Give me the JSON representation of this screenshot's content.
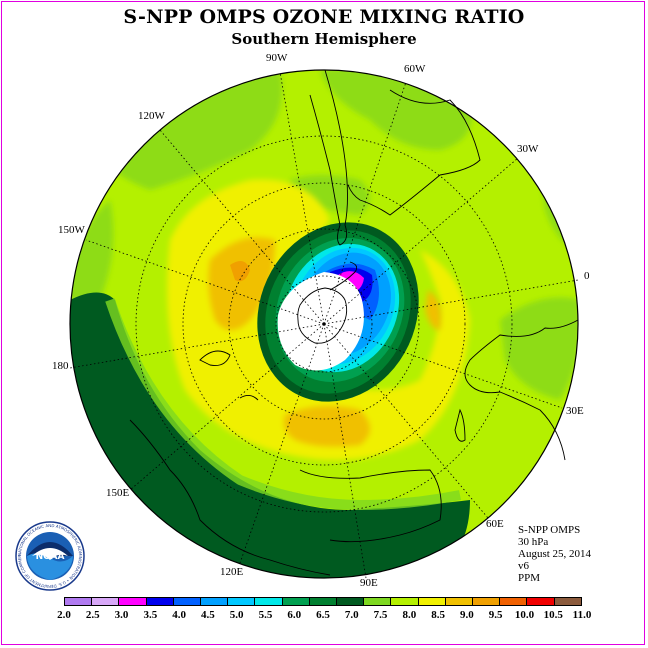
{
  "title": "S-NPP OMPS OZONE MIXING RATIO",
  "subtitle": "Southern Hemisphere",
  "longitude_labels": [
    "90W",
    "60W",
    "30W",
    "0",
    "30E",
    "60E",
    "90E",
    "120E",
    "150E",
    "180",
    "150W",
    "120W"
  ],
  "info": {
    "instrument": "S-NPP OMPS",
    "level": "30 hPa",
    "date": "August 25, 2014",
    "version": "v6",
    "units": "PPM"
  },
  "logo": {
    "text": "NOAA",
    "ring_text": "NATIONAL OCEANIC AND ATMOSPHERIC ADMINISTRATION • U.S. DEPARTMENT OF COMMERCE",
    "icon": "noaa-logo-icon"
  },
  "colorbar": {
    "ticks": [
      "2.0",
      "2.5",
      "3.0",
      "3.5",
      "4.0",
      "4.5",
      "5.0",
      "5.5",
      "6.0",
      "6.5",
      "7.0",
      "7.5",
      "8.0",
      "8.5",
      "9.0",
      "9.5",
      "10.0",
      "10.5",
      "11.0"
    ],
    "colors": [
      "#b07af0",
      "#d8a8f8",
      "#ff00ff",
      "#0000ee",
      "#0060ff",
      "#00a0ff",
      "#00c8ff",
      "#00e8e8",
      "#00a050",
      "#008030",
      "#005a20",
      "#7ed820",
      "#b4f000",
      "#f0f000",
      "#f0c000",
      "#f0a000",
      "#f06000",
      "#f00000",
      "#8b5a3c"
    ]
  },
  "colors": {
    "frame": "#e000e0",
    "background": "#ffffff",
    "pole_cap": "#ffffff",
    "grid": "#000000"
  }
}
